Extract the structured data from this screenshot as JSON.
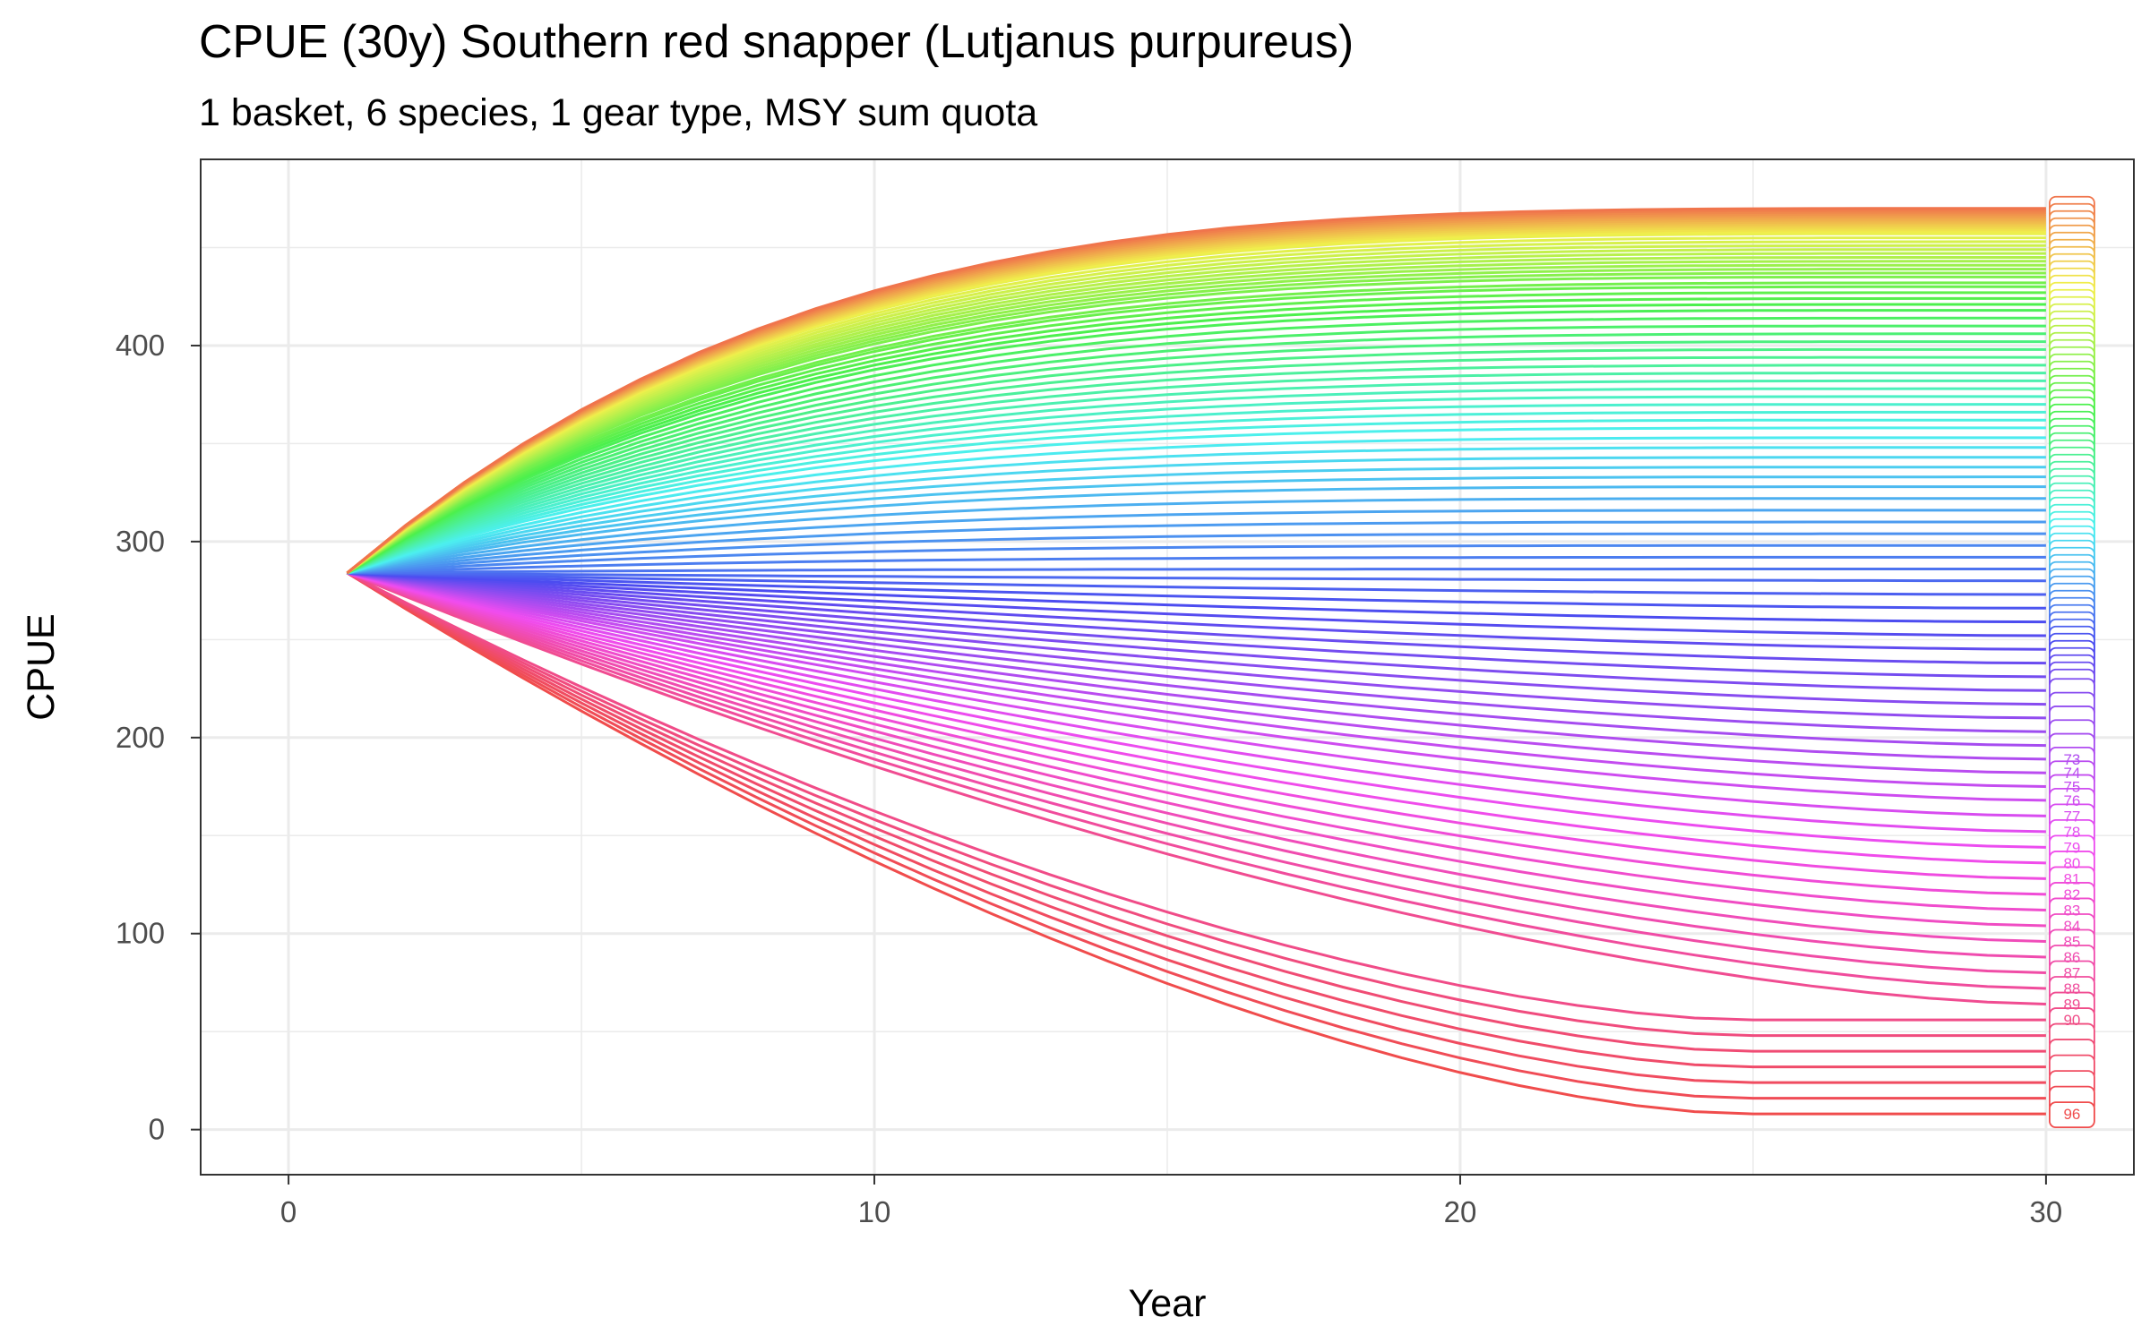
{
  "chart_data": {
    "type": "line",
    "title": "CPUE (30y) Southern red snapper (Lutjanus purpureus)",
    "subtitle": "1 basket, 6 species, 1 gear type, MSY sum quota",
    "xlabel": "Year",
    "ylabel": "CPUE",
    "xlim": [
      -1.5,
      31.5
    ],
    "ylim": [
      -23,
      495
    ],
    "x_ticks": [
      "0",
      "10",
      "20",
      "30"
    ],
    "y_ticks": [
      "0",
      "100",
      "200",
      "300",
      "400"
    ],
    "grid": true,
    "legend": "none",
    "start": {
      "x": 1,
      "y": 284
    },
    "end_year": 30,
    "series_count": 96,
    "color_hue_start_deg": 15,
    "color_hue_span_deg": 345,
    "color_lightness_pct": 62,
    "final_values": [
      470,
      469,
      468,
      467,
      466,
      465,
      464,
      463,
      462,
      461,
      460,
      459,
      458,
      457,
      455,
      453,
      451,
      449,
      447,
      445,
      443,
      441,
      439,
      437,
      435,
      432,
      430,
      427,
      424,
      421,
      418,
      414,
      410,
      406,
      402,
      398,
      394,
      390,
      386,
      382,
      378,
      374,
      370,
      366,
      362,
      358,
      353,
      348,
      343,
      338,
      333,
      328,
      322,
      316,
      310,
      304,
      298,
      292,
      286,
      280,
      273,
      266,
      259,
      252,
      245,
      238,
      231,
      224,
      217,
      210,
      203,
      196,
      189,
      182,
      175,
      168,
      160,
      152,
      144,
      136,
      128,
      120,
      112,
      104,
      96,
      88,
      80,
      72,
      64,
      56,
      48,
      40,
      32,
      24,
      16,
      8
    ],
    "series_labels_visible": [
      "73",
      "74",
      "75",
      "76",
      "77",
      "78",
      "79",
      "80",
      "81",
      "82",
      "83",
      "84",
      "85",
      "86",
      "87",
      "88",
      "89",
      "90",
      "96"
    ],
    "series_labels_first_index": 72
  }
}
